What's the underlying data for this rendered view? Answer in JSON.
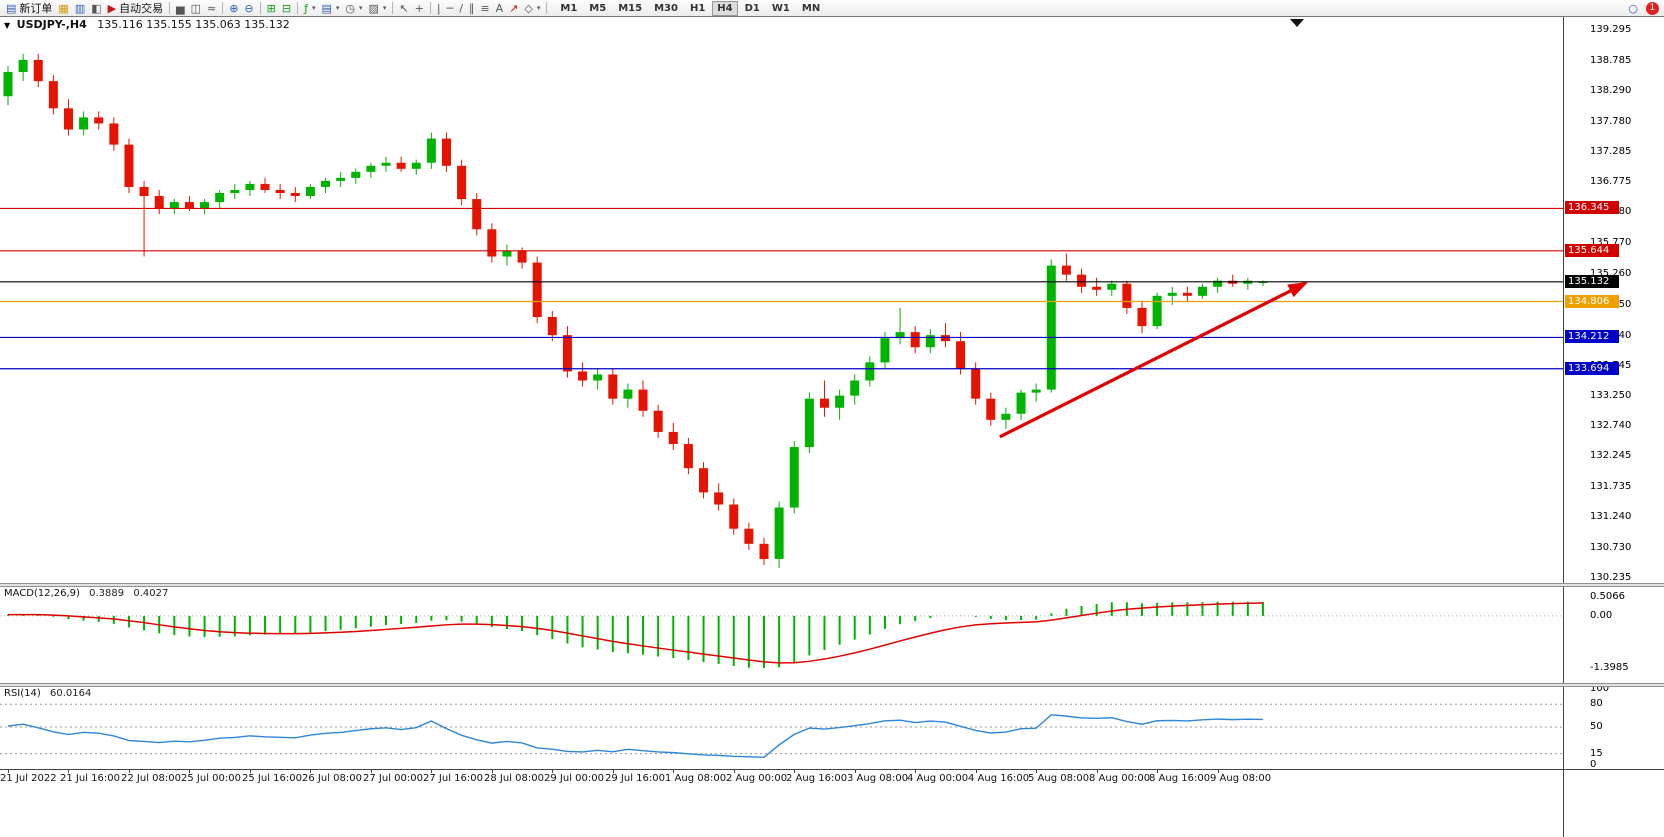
{
  "toolbar": {
    "new_order": "新订单",
    "autotrading": "自动交易",
    "timeframes": [
      "M1",
      "M5",
      "M15",
      "M30",
      "H1",
      "H4",
      "D1",
      "W1",
      "MN"
    ],
    "active_timeframe": "H4",
    "badge_count": "1",
    "icons": {
      "new_order": "▤",
      "charts": "▦",
      "market_watch": "▥",
      "data_window": "◧",
      "autotrading": "▶",
      "bar_chart": "▅",
      "candle_chart": "◫",
      "line_chart": "≈",
      "zoom_in": "⊕",
      "zoom_out": "⊖",
      "tile_windows": "⊞",
      "cascade_windows": "⊟",
      "indicators": "ƒ",
      "periods": "▤",
      "clock": "◷",
      "templates": "▨",
      "cursor": "↖",
      "crosshair": "+",
      "vline": "|",
      "hline": "─",
      "trendline": "/",
      "channel": "∥",
      "fibonacci": "≡",
      "text": "A",
      "arrows": "↗",
      "shapes": "◇",
      "dropdown": "▾",
      "search": "○",
      "chart_menu": "▼"
    }
  },
  "chart_header": {
    "symbol_period": "USDJPY-,H4",
    "ohlc": "135.116 135.155 135.063 135.132"
  },
  "chart_data": {
    "type": "candlestick",
    "symbol": "USDJPY-",
    "period": "H4",
    "ohlc_current": {
      "open": 135.116,
      "high": 135.155,
      "low": 135.063,
      "close": 135.132
    },
    "colors": {
      "bull": "#00B300",
      "bear": "#E51400",
      "macd_hist": "#00B300",
      "macd_signal": "#E00000",
      "rsi_line": "#2E86D9"
    },
    "price_axis": {
      "max": 139.295,
      "min": 130.235,
      "labels": [
        "139.295",
        "138.785",
        "138.290",
        "137.780",
        "137.285",
        "136.775",
        "136.280",
        "135.770",
        "135.260",
        "134.750",
        "134.240",
        "133.745",
        "133.250",
        "132.740",
        "132.245",
        "131.735",
        "131.240",
        "130.730",
        "130.235"
      ]
    },
    "hlines": [
      {
        "price": 136.345,
        "label": "136.345",
        "color": "#D40000"
      },
      {
        "price": 135.644,
        "label": "135.644",
        "color": "#D40000"
      },
      {
        "price": 134.806,
        "label": "134.806",
        "color": "#EFA000"
      },
      {
        "price": 134.212,
        "label": "134.212",
        "color": "#0000C8"
      },
      {
        "price": 133.694,
        "label": "133.694",
        "color": "#0000C8"
      },
      {
        "price": 135.132,
        "label": "135.132",
        "color": "#000000"
      }
    ],
    "trend_arrow": {
      "from_bar": 65.6,
      "from_price": 132.57,
      "to_bar": 86,
      "to_price": 135.13,
      "color": "#E00000"
    },
    "candles": [
      [
        138.2,
        138.7,
        138.05,
        138.6
      ],
      [
        138.6,
        138.9,
        138.45,
        138.8
      ],
      [
        138.8,
        138.9,
        138.35,
        138.45
      ],
      [
        138.45,
        138.55,
        137.9,
        138.0
      ],
      [
        138.0,
        138.15,
        137.55,
        137.65
      ],
      [
        137.65,
        137.95,
        137.55,
        137.85
      ],
      [
        137.85,
        137.95,
        137.65,
        137.75
      ],
      [
        137.75,
        137.85,
        137.3,
        137.4
      ],
      [
        137.4,
        137.5,
        136.6,
        136.7
      ],
      [
        136.7,
        136.8,
        135.55,
        136.55
      ],
      [
        136.55,
        136.65,
        136.25,
        136.35
      ],
      [
        136.35,
        136.5,
        136.25,
        136.45
      ],
      [
        136.45,
        136.55,
        136.3,
        136.35
      ],
      [
        136.35,
        136.5,
        136.25,
        136.45
      ],
      [
        136.45,
        136.65,
        136.35,
        136.6
      ],
      [
        136.6,
        136.75,
        136.5,
        136.65
      ],
      [
        136.65,
        136.8,
        136.55,
        136.75
      ],
      [
        136.75,
        136.85,
        136.6,
        136.65
      ],
      [
        136.65,
        136.75,
        136.5,
        136.6
      ],
      [
        136.6,
        136.7,
        136.45,
        136.55
      ],
      [
        136.55,
        136.75,
        136.5,
        136.7
      ],
      [
        136.7,
        136.85,
        136.6,
        136.8
      ],
      [
        136.8,
        136.95,
        136.7,
        136.85
      ],
      [
        136.85,
        137.0,
        136.75,
        136.95
      ],
      [
        136.95,
        137.1,
        136.85,
        137.05
      ],
      [
        137.05,
        137.2,
        136.95,
        137.1
      ],
      [
        137.1,
        137.2,
        136.95,
        137.0
      ],
      [
        137.0,
        137.15,
        136.9,
        137.1
      ],
      [
        137.1,
        137.6,
        137.0,
        137.5
      ],
      [
        137.5,
        137.6,
        136.95,
        137.05
      ],
      [
        137.05,
        137.15,
        136.4,
        136.5
      ],
      [
        136.5,
        136.6,
        135.9,
        136.0
      ],
      [
        136.0,
        136.1,
        135.45,
        135.55
      ],
      [
        135.55,
        135.75,
        135.4,
        135.65
      ],
      [
        135.65,
        135.7,
        135.35,
        135.45
      ],
      [
        135.45,
        135.55,
        134.45,
        134.55
      ],
      [
        134.55,
        134.65,
        134.15,
        134.25
      ],
      [
        134.25,
        134.4,
        133.55,
        133.65
      ],
      [
        133.65,
        133.8,
        133.4,
        133.5
      ],
      [
        133.5,
        133.7,
        133.35,
        133.6
      ],
      [
        133.6,
        133.7,
        133.1,
        133.2
      ],
      [
        133.2,
        133.45,
        133.05,
        133.35
      ],
      [
        133.35,
        133.5,
        132.9,
        133.0
      ],
      [
        133.0,
        133.1,
        132.55,
        132.65
      ],
      [
        132.65,
        132.8,
        132.35,
        132.45
      ],
      [
        132.45,
        132.55,
        131.95,
        132.05
      ],
      [
        132.05,
        132.15,
        131.55,
        131.65
      ],
      [
        131.65,
        131.8,
        131.35,
        131.45
      ],
      [
        131.45,
        131.55,
        130.95,
        131.05
      ],
      [
        131.05,
        131.15,
        130.7,
        130.8
      ],
      [
        130.8,
        130.9,
        130.45,
        130.55
      ],
      [
        130.55,
        131.5,
        130.4,
        131.4
      ],
      [
        131.4,
        132.5,
        131.3,
        132.4
      ],
      [
        132.4,
        133.3,
        132.3,
        133.2
      ],
      [
        133.2,
        133.5,
        132.9,
        133.05
      ],
      [
        133.05,
        133.35,
        132.85,
        133.25
      ],
      [
        133.25,
        133.6,
        133.1,
        133.5
      ],
      [
        133.5,
        133.9,
        133.4,
        133.8
      ],
      [
        133.8,
        134.3,
        133.7,
        134.2
      ],
      [
        134.2,
        134.7,
        134.1,
        134.3
      ],
      [
        134.3,
        134.4,
        133.95,
        134.05
      ],
      [
        134.05,
        134.35,
        133.95,
        134.25
      ],
      [
        134.25,
        134.45,
        134.05,
        134.15
      ],
      [
        134.15,
        134.3,
        133.6,
        133.7
      ],
      [
        133.7,
        133.8,
        133.1,
        133.2
      ],
      [
        133.2,
        133.3,
        132.75,
        132.85
      ],
      [
        132.85,
        133.05,
        132.7,
        132.95
      ],
      [
        132.95,
        133.35,
        132.85,
        133.3
      ],
      [
        133.3,
        133.45,
        133.15,
        133.35
      ],
      [
        133.35,
        135.5,
        133.3,
        135.4
      ],
      [
        135.4,
        135.6,
        135.15,
        135.25
      ],
      [
        135.25,
        135.35,
        134.95,
        135.05
      ],
      [
        135.05,
        135.2,
        134.9,
        135.0
      ],
      [
        135.0,
        135.15,
        134.9,
        135.1
      ],
      [
        135.1,
        135.15,
        134.6,
        134.7
      ],
      [
        134.7,
        134.8,
        134.28,
        134.4
      ],
      [
        134.4,
        134.95,
        134.35,
        134.9
      ],
      [
        134.9,
        135.05,
        134.75,
        134.95
      ],
      [
        134.95,
        135.05,
        134.8,
        134.9
      ],
      [
        134.9,
        135.1,
        134.85,
        135.05
      ],
      [
        135.05,
        135.2,
        134.95,
        135.15
      ],
      [
        135.15,
        135.25,
        135.05,
        135.1
      ],
      [
        135.1,
        135.2,
        135.0,
        135.15
      ],
      [
        135.116,
        135.155,
        135.063,
        135.132
      ]
    ],
    "macd": {
      "label": "MACD(12,26,9)",
      "main": "0.3889",
      "signal": "0.4027",
      "max": 0.5066,
      "min": -1.3985,
      "axis": [
        "0.5066",
        "0.00",
        "-1.3985"
      ]
    },
    "rsi": {
      "label": "RSI(14)",
      "value": "60.0164",
      "levels": [
        80,
        50,
        15
      ],
      "axis": [
        "100",
        "80",
        "50",
        "15",
        "0"
      ]
    },
    "time_labels": [
      {
        "bar": 0,
        "label": "21 Jul 2022"
      },
      {
        "bar": 4,
        "label": "21 Jul 16:00"
      },
      {
        "bar": 8,
        "label": "22 Jul 08:00"
      },
      {
        "bar": 12,
        "label": "25 Jul 00:00"
      },
      {
        "bar": 16,
        "label": "25 Jul 16:00"
      },
      {
        "bar": 20,
        "label": "26 Jul 08:00"
      },
      {
        "bar": 24,
        "label": "27 Jul 00:00"
      },
      {
        "bar": 28,
        "label": "27 Jul 16:00"
      },
      {
        "bar": 32,
        "label": "28 Jul 08:00"
      },
      {
        "bar": 36,
        "label": "29 Jul 00:00"
      },
      {
        "bar": 40,
        "label": "29 Jul 16:00"
      },
      {
        "bar": 44,
        "label": "1 Aug 08:00"
      },
      {
        "bar": 48,
        "label": "2 Aug 00:00"
      },
      {
        "bar": 52,
        "label": "2 Aug 16:00"
      },
      {
        "bar": 56,
        "label": "3 Aug 08:00"
      },
      {
        "bar": 60,
        "label": "4 Aug 00:00"
      },
      {
        "bar": 64,
        "label": "4 Aug 16:00"
      },
      {
        "bar": 68,
        "label": "5 Aug 08:00"
      },
      {
        "bar": 72,
        "label": "8 Aug 00:00"
      },
      {
        "bar": 76,
        "label": "8 Aug 16:00"
      },
      {
        "bar": 80,
        "label": "9 Aug 08:00"
      }
    ]
  }
}
